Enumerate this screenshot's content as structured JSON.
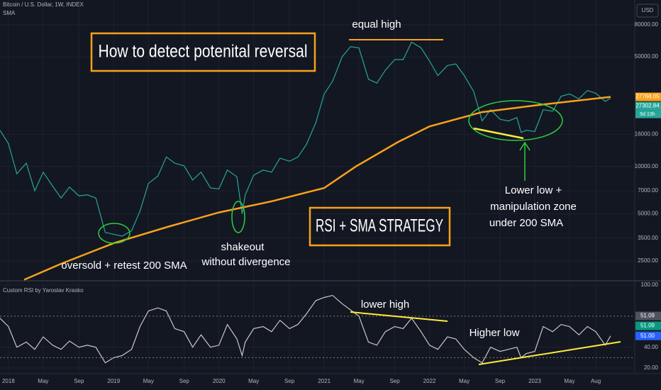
{
  "header": {
    "symbol": "Bitcoin / U.S. Dollar, 1W, INDEX",
    "currency": "USD",
    "rsi_title": "Custom RSI by Yaroslav Krasko",
    "countdown": "5d 13h"
  },
  "annotations": {
    "headline": "How to detect potenital reversal",
    "strategy": "RSI + SMA STRATEGY",
    "equal_high": "equal high",
    "oversold": "oversold + retest 200 SMA",
    "shakeout": [
      "shakeout",
      "without divergence"
    ],
    "lower_low": [
      "Lower low +",
      "manipulation zone",
      "under 200 SMA"
    ],
    "lower_high": "lower high",
    "higher_low": "Higher low"
  },
  "chart_data": [
    {
      "type": "line",
      "log_scale": true,
      "xlim": [
        2017.92,
        2023.95
      ],
      "ylim": [
        1890,
        115000
      ],
      "xticks": [
        {
          "value": 2018,
          "label": "2018"
        },
        {
          "value": 2018.33,
          "label": "May"
        },
        {
          "value": 2018.67,
          "label": "Sep"
        },
        {
          "value": 2019,
          "label": "2019"
        },
        {
          "value": 2019.33,
          "label": "May"
        },
        {
          "value": 2019.67,
          "label": "Sep"
        },
        {
          "value": 2020,
          "label": "2020"
        },
        {
          "value": 2020.33,
          "label": "May"
        },
        {
          "value": 2020.67,
          "label": "Sep"
        },
        {
          "value": 2021,
          "label": "2021"
        },
        {
          "value": 2021.33,
          "label": "May"
        },
        {
          "value": 2021.67,
          "label": "Sep"
        },
        {
          "value": 2022,
          "label": "2022"
        },
        {
          "value": 2022.33,
          "label": "May"
        },
        {
          "value": 2022.67,
          "label": "Sep"
        },
        {
          "value": 2023,
          "label": "2023"
        },
        {
          "value": 2023.33,
          "label": "May"
        },
        {
          "value": 2023.58,
          "label": "Aug"
        }
      ],
      "yticks": [
        {
          "value": 80000,
          "label": "80000.00"
        },
        {
          "value": 50000,
          "label": "50000.00"
        },
        {
          "value": 16000,
          "label": "16000.00"
        },
        {
          "value": 10000,
          "label": "10000.00"
        },
        {
          "value": 7000,
          "label": "7000.00"
        },
        {
          "value": 5000,
          "label": "5000.00"
        },
        {
          "value": 3500,
          "label": "3500.00"
        },
        {
          "value": 2500,
          "label": "2500.00"
        }
      ],
      "grid": true,
      "x": [
        2017.92,
        2018.0,
        2018.08,
        2018.17,
        2018.25,
        2018.33,
        2018.42,
        2018.5,
        2018.58,
        2018.67,
        2018.75,
        2018.83,
        2018.92,
        2019.0,
        2019.08,
        2019.17,
        2019.25,
        2019.33,
        2019.42,
        2019.5,
        2019.58,
        2019.67,
        2019.75,
        2019.83,
        2019.92,
        2020.0,
        2020.08,
        2020.17,
        2020.22,
        2020.25,
        2020.33,
        2020.42,
        2020.5,
        2020.58,
        2020.67,
        2020.75,
        2020.83,
        2020.92,
        2021.0,
        2021.08,
        2021.17,
        2021.25,
        2021.33,
        2021.42,
        2021.5,
        2021.58,
        2021.67,
        2021.75,
        2021.83,
        2021.92,
        2022.0,
        2022.08,
        2022.17,
        2022.25,
        2022.33,
        2022.42,
        2022.5,
        2022.58,
        2022.67,
        2022.75,
        2022.83,
        2022.87,
        2022.92,
        2023.0,
        2023.08,
        2023.17,
        2023.25,
        2023.33,
        2023.42,
        2023.5,
        2023.58,
        2023.67,
        2023.72
      ],
      "series": [
        {
          "color": "#26a69a",
          "values": [
            17000,
            14000,
            9000,
            10500,
            7000,
            9200,
            7500,
            6300,
            7400,
            6500,
            6600,
            6300,
            3800,
            3700,
            3600,
            3900,
            5200,
            7800,
            8700,
            11500,
            10500,
            10100,
            8200,
            9200,
            7300,
            7200,
            9500,
            8600,
            5000,
            6600,
            8800,
            9500,
            9200,
            11300,
            10800,
            11500,
            13800,
            19000,
            29000,
            35000,
            50000,
            58000,
            57000,
            36000,
            34000,
            41000,
            48000,
            48000,
            62000,
            57000,
            47000,
            38000,
            44000,
            45000,
            38000,
            30000,
            19500,
            23000,
            20000,
            19500,
            20500,
            16500,
            17000,
            16700,
            23000,
            22500,
            28000,
            29000,
            27000,
            30500,
            29300,
            26000,
            27300
          ]
        },
        {
          "name": "SMA",
          "color": "#f7a21b",
          "x": [
            2018.15,
            2018.5,
            2019.0,
            2019.5,
            2020.0,
            2020.5,
            2021.0,
            2021.3,
            2021.7,
            2022.0,
            2022.5,
            2023.0,
            2023.72
          ],
          "values": [
            1900,
            2400,
            3250,
            4100,
            5100,
            6000,
            7300,
            10000,
            14300,
            18000,
            22200,
            24500,
            27768
          ]
        }
      ],
      "price_labels": [
        {
          "value": 27768.05,
          "label": "27768.05",
          "color": "#f7a21b"
        },
        {
          "value": 27302.84,
          "label": "27302.84",
          "color": "#26a69a"
        }
      ]
    },
    {
      "type": "line",
      "xlim": [
        2017.92,
        2023.95
      ],
      "ylim": [
        15.9,
        103.4
      ],
      "yticks": [
        {
          "value": 100,
          "label": "100.00"
        },
        {
          "value": 40,
          "label": "40.00"
        },
        {
          "value": 20,
          "label": "20.00"
        }
      ],
      "levels": [
        70,
        30
      ],
      "series": [
        {
          "color": "#c8c8c8",
          "values": [
            68,
            60,
            40,
            45,
            38,
            50,
            42,
            38,
            46,
            40,
            42,
            40,
            25,
            30,
            32,
            38,
            60,
            75,
            78,
            75,
            58,
            55,
            40,
            52,
            40,
            42,
            62,
            48,
            32,
            45,
            58,
            60,
            55,
            66,
            58,
            62,
            72,
            85,
            88,
            90,
            82,
            76,
            70,
            45,
            42,
            55,
            60,
            58,
            68,
            55,
            42,
            38,
            50,
            48,
            38,
            30,
            25,
            40,
            36,
            38,
            40,
            30,
            34,
            36,
            60,
            55,
            62,
            60,
            52,
            60,
            55,
            42,
            51
          ]
        }
      ],
      "value_tags": [
        {
          "value": 51.09,
          "label": "51.09",
          "color": "#50535e"
        },
        {
          "value": 51.09,
          "label": "51.09",
          "color": "#089981"
        },
        {
          "value": 51.0,
          "label": "51.00",
          "color": "#2962ff"
        }
      ]
    }
  ]
}
